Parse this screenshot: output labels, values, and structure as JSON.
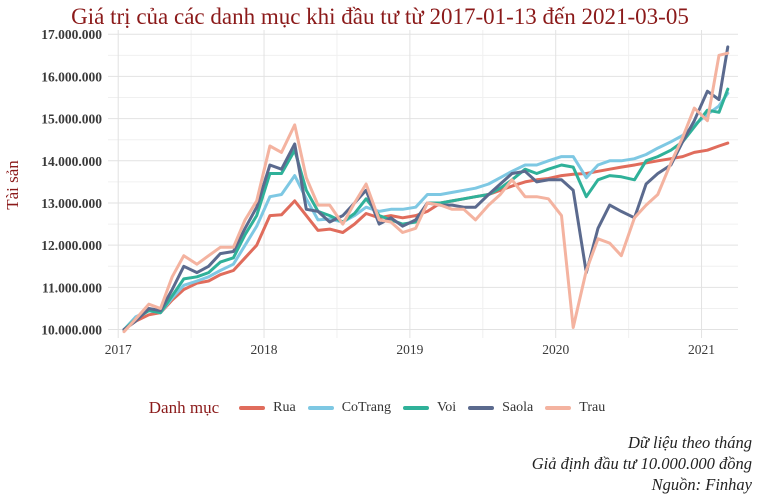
{
  "chart_data": {
    "type": "line",
    "title": "Giá trị của các danh mục khi đầu tư từ 2017-01-13 đến 2021-03-05",
    "ylabel": "Tài sản",
    "xlabel": "",
    "x_ticks": [
      "2017",
      "2018",
      "2019",
      "2020",
      "2021"
    ],
    "y_ticks": [
      "10.000.000",
      "11.000.000",
      "12.000.000",
      "13.000.000",
      "14.000.000",
      "15.000.000",
      "16.000.000",
      "17.000.000"
    ],
    "ylim": [
      9800000,
      17100000
    ],
    "xlim": [
      2016.93,
      2021.25
    ],
    "grid": true,
    "legend_title": "Danh mục",
    "legend_position": "bottom",
    "x": [
      2017.04,
      2017.12,
      2017.21,
      2017.29,
      2017.37,
      2017.45,
      2017.54,
      2017.62,
      2017.7,
      2017.79,
      2017.87,
      2017.95,
      2018.04,
      2018.12,
      2018.21,
      2018.29,
      2018.37,
      2018.45,
      2018.54,
      2018.62,
      2018.7,
      2018.79,
      2018.87,
      2018.95,
      2019.04,
      2019.12,
      2019.21,
      2019.29,
      2019.37,
      2019.45,
      2019.54,
      2019.62,
      2019.7,
      2019.79,
      2019.87,
      2019.95,
      2020.04,
      2020.12,
      2020.21,
      2020.29,
      2020.37,
      2020.45,
      2020.54,
      2020.62,
      2020.7,
      2020.79,
      2020.87,
      2020.95,
      2021.04,
      2021.12,
      2021.18
    ],
    "series": [
      {
        "name": "Rua",
        "color": "#e06c5c",
        "values": [
          10000000,
          10200000,
          10350000,
          10400000,
          10700000,
          10950000,
          11100000,
          11150000,
          11300000,
          11400000,
          11700000,
          12000000,
          12700000,
          12720000,
          13050000,
          12700000,
          12350000,
          12380000,
          12300000,
          12500000,
          12750000,
          12650000,
          12700000,
          12650000,
          12700000,
          12800000,
          13000000,
          13050000,
          13100000,
          13150000,
          13200000,
          13300000,
          13400000,
          13500000,
          13550000,
          13580000,
          13650000,
          13680000,
          13700000,
          13750000,
          13800000,
          13850000,
          13900000,
          13950000,
          14000000,
          14050000,
          14100000,
          14200000,
          14250000,
          14350000,
          14420000
        ]
      },
      {
        "name": "CoTrang",
        "color": "#7ec8e3",
        "values": [
          10000000,
          10300000,
          10450000,
          10400000,
          10750000,
          11050000,
          11150000,
          11250000,
          11400000,
          11550000,
          12000000,
          12450000,
          13150000,
          13200000,
          13650000,
          13100000,
          12600000,
          12620000,
          12550000,
          12700000,
          12900000,
          12800000,
          12850000,
          12850000,
          12900000,
          13200000,
          13200000,
          13250000,
          13300000,
          13350000,
          13450000,
          13600000,
          13750000,
          13900000,
          13900000,
          14000000,
          14100000,
          14100000,
          13600000,
          13900000,
          14000000,
          14000000,
          14050000,
          14150000,
          14300000,
          14450000,
          14600000,
          14850000,
          15100000,
          15300000,
          15600000
        ]
      },
      {
        "name": "Voi",
        "color": "#2fb199",
        "values": [
          10000000,
          10250000,
          10450000,
          10400000,
          10800000,
          11200000,
          11250000,
          11350000,
          11600000,
          11700000,
          12250000,
          12700000,
          13700000,
          13700000,
          14250000,
          13300000,
          12800000,
          12700000,
          12550000,
          12750000,
          13100000,
          12700000,
          12600000,
          12500000,
          12550000,
          13000000,
          13000000,
          13050000,
          13100000,
          13150000,
          13200000,
          13350000,
          13550000,
          13800000,
          13700000,
          13800000,
          13900000,
          13850000,
          13150000,
          13550000,
          13650000,
          13620000,
          13550000,
          14000000,
          14100000,
          14250000,
          14450000,
          14800000,
          15200000,
          15150000,
          15700000
        ]
      },
      {
        "name": "Saola",
        "color": "#5b6a8e",
        "values": [
          10000000,
          10200000,
          10500000,
          10450000,
          10950000,
          11500000,
          11350000,
          11500000,
          11800000,
          11850000,
          12400000,
          12900000,
          13900000,
          13800000,
          14400000,
          12850000,
          12800000,
          12550000,
          12700000,
          13000000,
          13300000,
          12500000,
          12650000,
          12450000,
          12600000,
          13000000,
          12950000,
          12950000,
          12900000,
          12900000,
          13200000,
          13450000,
          13700000,
          13750000,
          13500000,
          13550000,
          13550000,
          13300000,
          11350000,
          12400000,
          12950000,
          12800000,
          12650000,
          13450000,
          13700000,
          13900000,
          14450000,
          14950000,
          15650000,
          15450000,
          16700000
        ]
      },
      {
        "name": "Trau",
        "color": "#f4b3a0",
        "values": [
          9950000,
          10250000,
          10600000,
          10500000,
          11250000,
          11750000,
          11550000,
          11750000,
          11950000,
          11950000,
          12600000,
          13050000,
          14350000,
          14200000,
          14850000,
          13600000,
          12950000,
          12950000,
          12500000,
          13000000,
          13450000,
          12600000,
          12550000,
          12300000,
          12400000,
          13000000,
          12950000,
          12850000,
          12850000,
          12600000,
          12950000,
          13200000,
          13550000,
          13150000,
          13150000,
          13100000,
          12700000,
          10050000,
          11400000,
          12150000,
          12050000,
          11750000,
          12650000,
          12950000,
          13200000,
          13950000,
          14550000,
          15250000,
          14950000,
          16500000,
          16550000
        ]
      }
    ]
  },
  "caption": {
    "line1": "Dữ liệu theo tháng",
    "line2": "Giả định đầu tư 10.000.000 đồng",
    "line3": "Nguồn: Finhay"
  }
}
